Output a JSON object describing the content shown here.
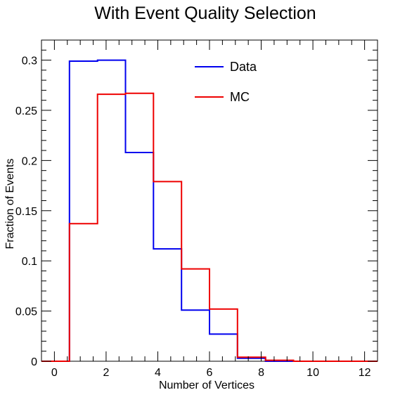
{
  "chart_data": {
    "type": "histogram",
    "title": "With Event Quality Selection",
    "xlabel": "Number of Vertices",
    "ylabel": "Fraction of Events",
    "xlim": [
      -0.5,
      12.5
    ],
    "ylim": [
      0,
      0.32
    ],
    "x_ticks": [
      0,
      2,
      4,
      6,
      8,
      10,
      12
    ],
    "x_tick_labels": [
      "0",
      "2",
      "4",
      "6",
      "8",
      "10",
      "12"
    ],
    "y_ticks": [
      0,
      0.05,
      0.1,
      0.15,
      0.2,
      0.25,
      0.3
    ],
    "y_tick_labels": [
      "0",
      "0.05",
      "0.1",
      "0.15",
      "0.2",
      "0.25",
      "0.3"
    ],
    "bin_edges": [
      -0.5,
      0.583,
      1.667,
      2.75,
      3.833,
      4.917,
      6.0,
      7.083,
      8.167,
      9.25,
      10.333,
      11.417,
      12.5
    ],
    "legend_position": "top-right",
    "series": [
      {
        "name": "Data",
        "color": "#0000ee",
        "values": [
          0.0,
          0.299,
          0.3,
          0.208,
          0.112,
          0.051,
          0.027,
          0.003,
          0.0,
          0.0,
          0.0,
          0.0
        ]
      },
      {
        "name": "MC",
        "color": "#ee0000",
        "values": [
          0.0,
          0.137,
          0.266,
          0.267,
          0.179,
          0.092,
          0.052,
          0.004,
          0.001,
          0.0,
          0.0,
          0.0
        ]
      }
    ]
  }
}
